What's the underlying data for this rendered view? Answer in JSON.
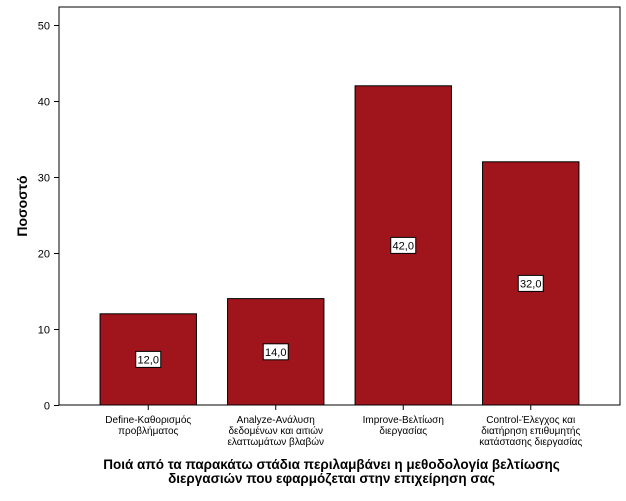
{
  "chart_data": {
    "type": "bar",
    "categories": [
      [
        "Define-Καθορισμός",
        "προβλήματος"
      ],
      [
        "Analyze-Ανάλυση",
        "δεδομένων και αιτιών",
        "ελαττωμάτων βλαβών"
      ],
      [
        "Improve-Βελτίωση",
        "διεργασίας"
      ],
      [
        "Control-Έλεγχος και",
        "διατήρηση επιθυμητής",
        "κατάστασης διεργασίας"
      ]
    ],
    "values": [
      12.0,
      14.0,
      42.0,
      32.0
    ],
    "data_labels": [
      "12,0",
      "14,0",
      "42,0",
      "32,0"
    ],
    "ylabel": "Ποσοστό",
    "xlabel": [
      "Ποιά από τα παρακάτω στάδια περιλαμβάνει η μεθοδολογία βελτίωσης",
      "διεργασιών που εφαρμόζεται στην επιχείρηση σας"
    ],
    "ylim": [
      0,
      50
    ],
    "yticks": [
      0,
      10,
      20,
      30,
      40,
      50
    ],
    "grid": false,
    "legend": "none",
    "colors": {
      "bar": "#a0151c",
      "bar_edge": "#000000",
      "plot_border": "#000000"
    }
  }
}
